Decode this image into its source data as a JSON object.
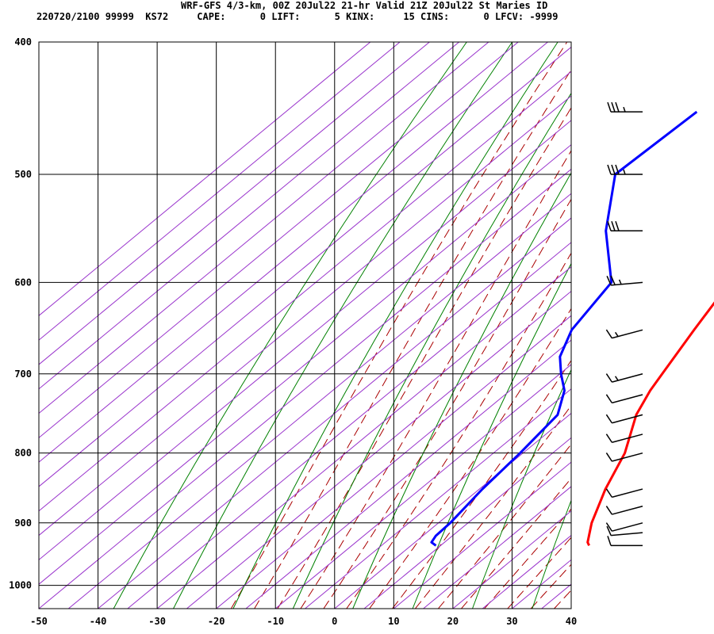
{
  "header": {
    "title": "WRF-GFS 4/3-km, 00Z 20Jul22 21-hr Valid 21Z 20Jul22 St Maries ID",
    "stats": "220720/2100 99999  KS72     CAPE:      0 LIFT:      5 KINX:     15 CINS:      0 LFCV: -9999"
  },
  "chart_data": {
    "type": "skew-t",
    "xlim": [
      -50,
      40
    ],
    "ylim": [
      1040,
      400
    ],
    "yscale": "log",
    "x_ticks": [
      "-50",
      "-40",
      "-30",
      "-20",
      "-10",
      "0",
      "10",
      "20",
      "30",
      "40"
    ],
    "y_ticks": [
      "400",
      "500",
      "600",
      "700",
      "800",
      "900",
      "1000"
    ],
    "grid": true,
    "colors": {
      "temperature": "#ff0000",
      "dewpoint": "#0000ff",
      "isotherms": "#9933cc",
      "dry_adiabats": "#008000",
      "moist_adiabats": "#aa0000",
      "wind_barbs": "#000000"
    },
    "series": [
      {
        "values": [
          {
            "p": 935,
            "t": 30.1
          },
          {
            "p": 930,
            "t": 29.2
          },
          {
            "p": 900,
            "t": 25.9
          },
          {
            "p": 850,
            "t": 21.3
          },
          {
            "p": 800,
            "t": 17.2
          },
          {
            "p": 750,
            "t": 11.3
          },
          {
            "p": 720,
            "t": 8.7
          },
          {
            "p": 700,
            "t": 7.3
          },
          {
            "p": 650,
            "t": 3.7
          },
          {
            "p": 600,
            "t": 0.0
          },
          {
            "p": 550,
            "t": -3.8
          },
          {
            "p": 500,
            "t": -7.2
          },
          {
            "p": 450,
            "t": -11.8
          }
        ]
      },
      {
        "values": [
          {
            "p": 935,
            "t": 4.2
          },
          {
            "p": 930,
            "t": 2.8
          },
          {
            "p": 920,
            "t": 2.2
          },
          {
            "p": 900,
            "t": 2.0
          },
          {
            "p": 850,
            "t": 0.5
          },
          {
            "p": 800,
            "t": -0.5
          },
          {
            "p": 750,
            "t": -2.0
          },
          {
            "p": 720,
            "t": -5.8
          },
          {
            "p": 700,
            "t": -9.8
          },
          {
            "p": 680,
            "t": -13.5
          },
          {
            "p": 650,
            "t": -17.0
          },
          {
            "p": 600,
            "t": -20.0
          },
          {
            "p": 550,
            "t": -31.5
          },
          {
            "p": 500,
            "t": -41.5
          },
          {
            "p": 450,
            "t": -40.5
          }
        ]
      }
    ],
    "wind_barbs": [
      {
        "p": 450,
        "speed_kt": 35,
        "dir_deg": 270
      },
      {
        "p": 500,
        "speed_kt": 35,
        "dir_deg": 270
      },
      {
        "p": 550,
        "speed_kt": 30,
        "dir_deg": 270
      },
      {
        "p": 600,
        "speed_kt": 25,
        "dir_deg": 265
      },
      {
        "p": 650,
        "speed_kt": 15,
        "dir_deg": 255
      },
      {
        "p": 700,
        "speed_kt": 15,
        "dir_deg": 255
      },
      {
        "p": 725,
        "speed_kt": 10,
        "dir_deg": 255
      },
      {
        "p": 750,
        "speed_kt": 10,
        "dir_deg": 255
      },
      {
        "p": 775,
        "speed_kt": 10,
        "dir_deg": 255
      },
      {
        "p": 800,
        "speed_kt": 10,
        "dir_deg": 255
      },
      {
        "p": 850,
        "speed_kt": 10,
        "dir_deg": 255
      },
      {
        "p": 875,
        "speed_kt": 10,
        "dir_deg": 255
      },
      {
        "p": 900,
        "speed_kt": 10,
        "dir_deg": 255
      },
      {
        "p": 915,
        "speed_kt": 10,
        "dir_deg": 265
      },
      {
        "p": 935,
        "speed_kt": 10,
        "dir_deg": 270
      }
    ]
  }
}
